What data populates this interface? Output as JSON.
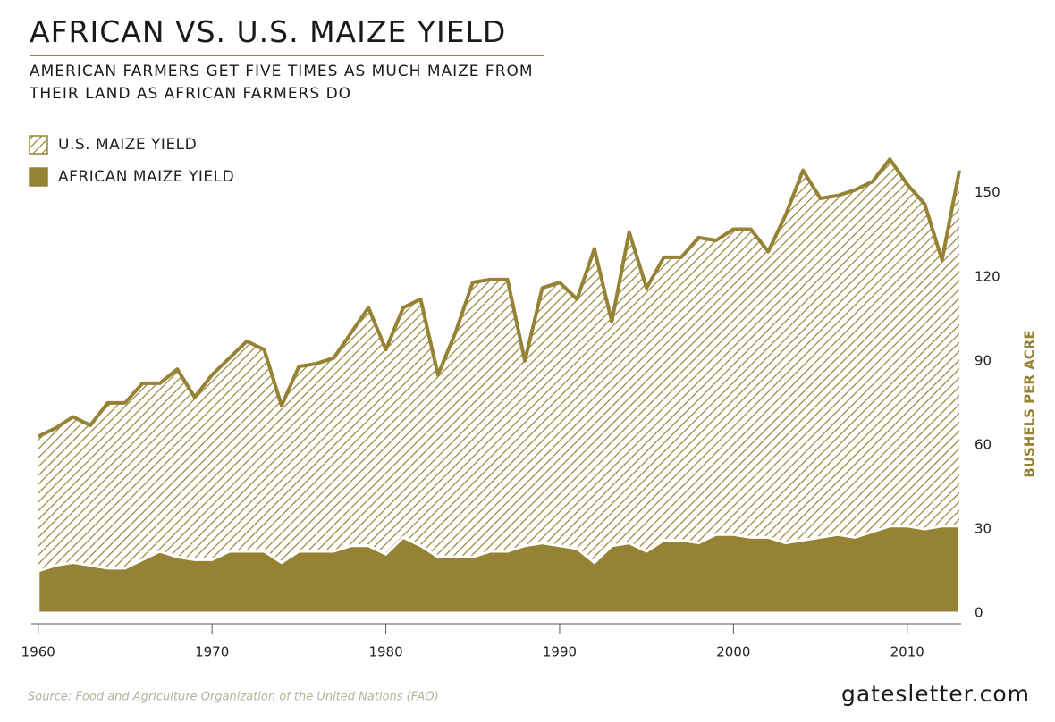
{
  "chart_data": {
    "type": "area",
    "title": "AFRICAN VS. U.S. MAIZE YIELD",
    "subtitle": [
      "AMERICAN FARMERS GET FIVE TIMES AS MUCH MAIZE FROM",
      "THEIR LAND AS AFRICAN FARMERS DO"
    ],
    "y_label": "BUSHELS PER ACRE",
    "source": "Source: Food and Agriculture Organization of the United Nations (FAO)",
    "brand": "gatesletter.com",
    "x": [
      1960,
      1961,
      1962,
      1963,
      1964,
      1965,
      1966,
      1967,
      1968,
      1969,
      1970,
      1971,
      1972,
      1973,
      1974,
      1975,
      1976,
      1977,
      1978,
      1979,
      1980,
      1981,
      1982,
      1983,
      1984,
      1985,
      1986,
      1987,
      1988,
      1989,
      1990,
      1991,
      1992,
      1993,
      1994,
      1995,
      1996,
      1997,
      1998,
      1999,
      2000,
      2001,
      2002,
      2003,
      2004,
      2005,
      2006,
      2007,
      2008,
      2009,
      2010,
      2011,
      2012,
      2013
    ],
    "series": [
      {
        "name": "U.S. MAIZE YIELD",
        "color": "#968234",
        "pattern": "hatch",
        "values": [
          63,
          66,
          70,
          67,
          75,
          75,
          82,
          82,
          87,
          77,
          85,
          91,
          97,
          94,
          74,
          88,
          89,
          91,
          100,
          109,
          94,
          109,
          112,
          85,
          100,
          118,
          119,
          119,
          90,
          116,
          118,
          112,
          130,
          104,
          136,
          116,
          127,
          127,
          134,
          133,
          137,
          137,
          129,
          142,
          158,
          148,
          149,
          151,
          154,
          162,
          153,
          146,
          126,
          158
        ]
      },
      {
        "name": "AFRICAN MAIZE YIELD",
        "color": "#968234",
        "pattern": "solid",
        "values": [
          15,
          17,
          18,
          17,
          16,
          16,
          19,
          22,
          20,
          19,
          19,
          22,
          22,
          22,
          18,
          22,
          22,
          22,
          24,
          24,
          21,
          27,
          24,
          20,
          20,
          20,
          22,
          22,
          24,
          25,
          24,
          23,
          18,
          24,
          25,
          22,
          26,
          26,
          25,
          28,
          28,
          27,
          27,
          25,
          26,
          27,
          28,
          27,
          29,
          31,
          31,
          30,
          31,
          31
        ]
      }
    ],
    "xlim": [
      1959.6,
      2013.1
    ],
    "xticks": [
      1960,
      1970,
      1980,
      1990,
      2000,
      2010
    ],
    "ylim": [
      0,
      170
    ],
    "yticks": [
      0,
      30,
      60,
      90,
      120,
      150
    ]
  }
}
